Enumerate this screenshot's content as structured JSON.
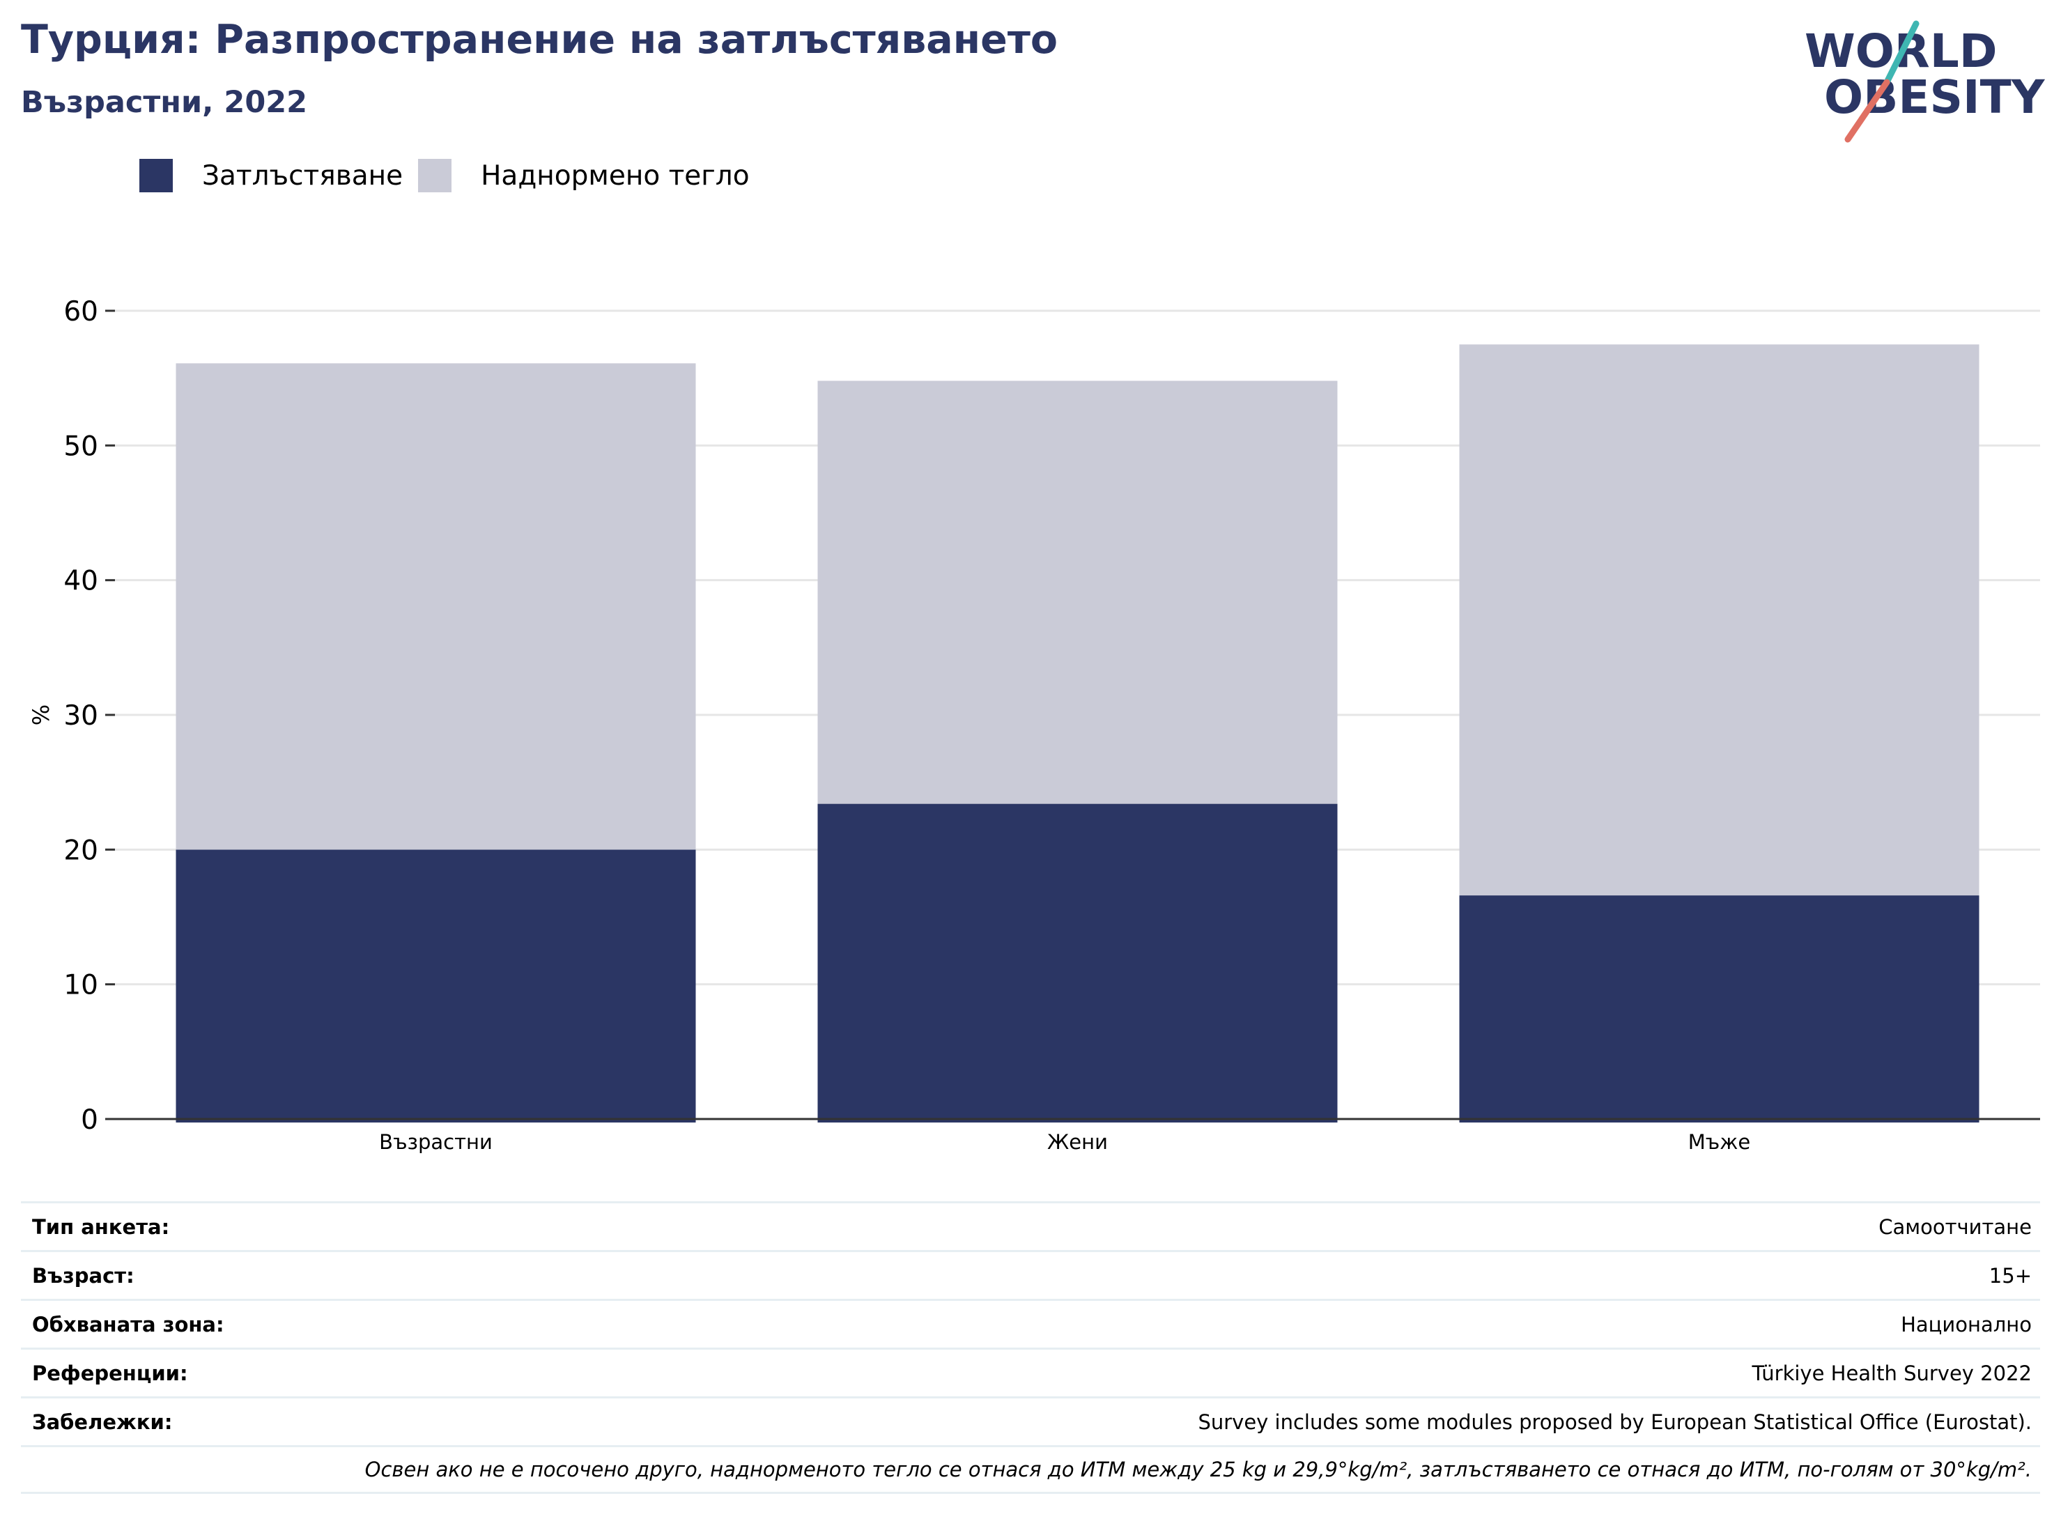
{
  "header": {
    "title": "Турция: Разпространение на затлъстяването",
    "subtitle": "Възрастни, 2022"
  },
  "logo": {
    "line1": "WORLD",
    "line2": "OBESITY"
  },
  "colors": {
    "obesity": "#2b3664",
    "overweight": "#cacbd7",
    "accent_teal": "#3fb6b2",
    "accent_coral": "#e07063",
    "grid": "#e6e6e6"
  },
  "chart_data": {
    "type": "bar",
    "stacked": true,
    "categories": [
      "Възрастни",
      "Жени",
      "Мъже"
    ],
    "series": [
      {
        "name": "Затлъстяване",
        "values": [
          20.0,
          23.4,
          16.6
        ]
      },
      {
        "name": "Наднормено тегло",
        "values": [
          36.1,
          31.4,
          40.9
        ]
      }
    ],
    "ylabel": "%",
    "ylim": [
      0,
      60
    ],
    "yticks": [
      0,
      10,
      20,
      30,
      40,
      50,
      60
    ],
    "grid": true,
    "legend": "top-left"
  },
  "meta": {
    "rows": [
      {
        "label": "Тип анкета:",
        "value": "Самоотчитане"
      },
      {
        "label": "Възраст:",
        "value": "15+"
      },
      {
        "label": "Обхваната зона:",
        "value": "Национално"
      },
      {
        "label": "Референции:",
        "value": "Türkiye Health Survey 2022"
      },
      {
        "label": "Забележки:",
        "value": "Survey includes some modules proposed by European Statistical Office (Eurostat)."
      }
    ],
    "note": "Освен ако не е посочено друго, наднорменото тегло се отнася до ИТМ между 25 kg и 29,9°kg/m², затлъстяването се отнася до ИТМ, по-голям от 30°kg/m²."
  }
}
